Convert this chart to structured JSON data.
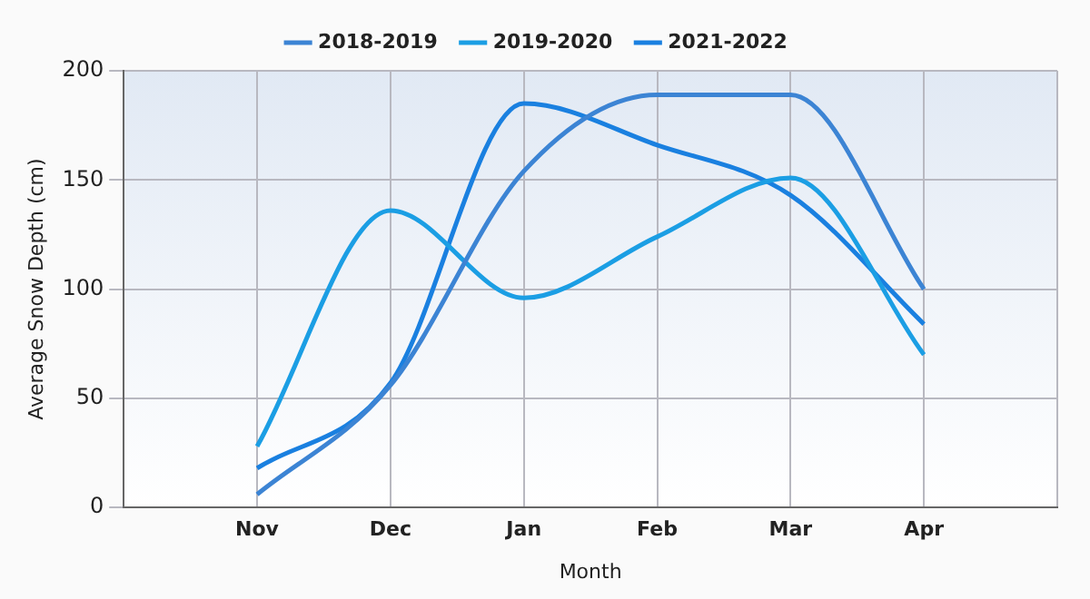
{
  "chart_data": {
    "type": "line",
    "xlabel": "Month",
    "ylabel": "Average Snow Depth (cm)",
    "categories": [
      null,
      "Nov",
      "Dec",
      "Jan",
      "Feb",
      "Mar",
      "Apr",
      null
    ],
    "series": [
      {
        "name": "2018-2019",
        "color": "#3c84d4",
        "values": [
          null,
          6,
          56,
          154,
          189,
          189,
          100,
          null
        ]
      },
      {
        "name": "2019-2020",
        "color": "#1b9ee4",
        "values": [
          null,
          28,
          136,
          96,
          124,
          151,
          70,
          null
        ]
      },
      {
        "name": "2021-2022",
        "color": "#1a80e0",
        "values": [
          null,
          18,
          57,
          185,
          166,
          143,
          84,
          null
        ]
      }
    ],
    "ylim": [
      0,
      200
    ],
    "yticks": [
      0,
      50,
      100,
      150,
      200
    ],
    "grid": true,
    "legend": "top",
    "marker": "none",
    "line_style": "solid"
  }
}
